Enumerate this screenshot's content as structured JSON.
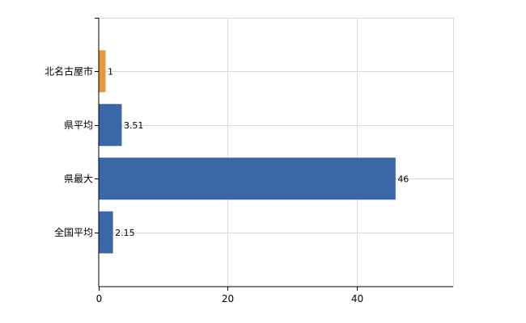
{
  "chart_data": {
    "type": "bar",
    "orientation": "horizontal",
    "categories": [
      "北名古屋市",
      "県平均",
      "県最大",
      "全国平均"
    ],
    "values": [
      1,
      3.51,
      46,
      2.15
    ],
    "data_labels": [
      "1",
      "3.51",
      "46",
      "2.15"
    ],
    "colors": [
      "#e8963c",
      "#3a67a8",
      "#3a67a8",
      "#3a67a8"
    ],
    "title": "",
    "xlabel": "",
    "ylabel": "",
    "xlim": [
      0,
      55
    ],
    "x_ticks": [
      0,
      20,
      40
    ],
    "x_tick_labels": [
      "0",
      "20",
      "40"
    ],
    "grid": true,
    "legend": "none"
  }
}
